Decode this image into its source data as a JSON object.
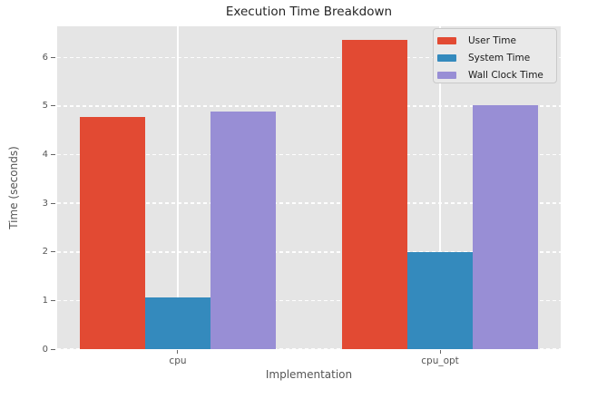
{
  "chart_data": {
    "type": "bar",
    "title": "Execution Time Breakdown",
    "xlabel": "Implementation",
    "ylabel": "Time (seconds)",
    "categories": [
      "cpu",
      "cpu_opt"
    ],
    "series": [
      {
        "name": "User Time",
        "color": "#E24A33",
        "values": [
          4.78,
          6.36
        ]
      },
      {
        "name": "System Time",
        "color": "#348ABD",
        "values": [
          1.07,
          1.99
        ]
      },
      {
        "name": "Wall Clock Time",
        "color": "#988ED5",
        "values": [
          4.89,
          5.01
        ]
      }
    ],
    "yticks": [
      0,
      1,
      2,
      3,
      4,
      5,
      6
    ],
    "ylim": [
      0,
      6.64
    ],
    "xlim": [
      -0.46,
      1.46
    ],
    "bar_width": 0.25,
    "grid": true,
    "legend_position": "upper right",
    "style": {
      "axes_background": "#e5e5e5",
      "grid_color": "#ffffff",
      "tick_label_color": "#555555",
      "axis_label_color": "#555555",
      "title_color": "#262626",
      "legend_background": "#e9e9e9",
      "legend_border": "#c9c9c9"
    }
  }
}
